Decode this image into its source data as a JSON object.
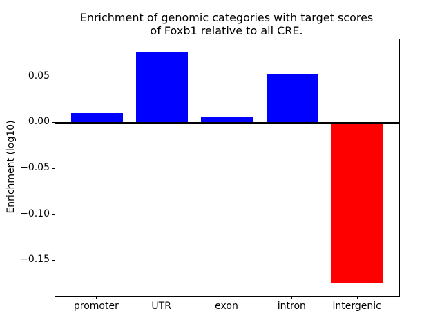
{
  "figure": {
    "background": "#ffffff"
  },
  "chart_data": {
    "type": "bar",
    "title": "Enrichment of genomic categories with target scores of Foxb1 relative to all CRE.",
    "title_lines": [
      "Enrichment of genomic categories with target scores",
      "of Foxb1 relative to all CRE."
    ],
    "xlabel": "",
    "ylabel": "Enrichment (log10)",
    "categories": [
      "promoter",
      "UTR",
      "exon",
      "intron",
      "intergenic"
    ],
    "values": [
      0.011,
      0.077,
      0.007,
      0.053,
      -0.174
    ],
    "bar_colors": [
      "#0000ff",
      "#0000ff",
      "#0000ff",
      "#0000ff",
      "#ff0000"
    ],
    "positive_color": "#0000ff",
    "negative_color": "#ff0000",
    "ylim": [
      -0.188,
      0.091
    ],
    "yticks": [
      0.05,
      0.0,
      -0.05,
      -0.1,
      -0.15
    ],
    "ytick_labels": [
      "0.05",
      "0.00",
      "−0.05",
      "−0.10",
      "−0.15"
    ],
    "grid": false,
    "legend": null,
    "zero_line": true,
    "bar_width_fraction": 0.8,
    "axis_color": "#000000"
  }
}
